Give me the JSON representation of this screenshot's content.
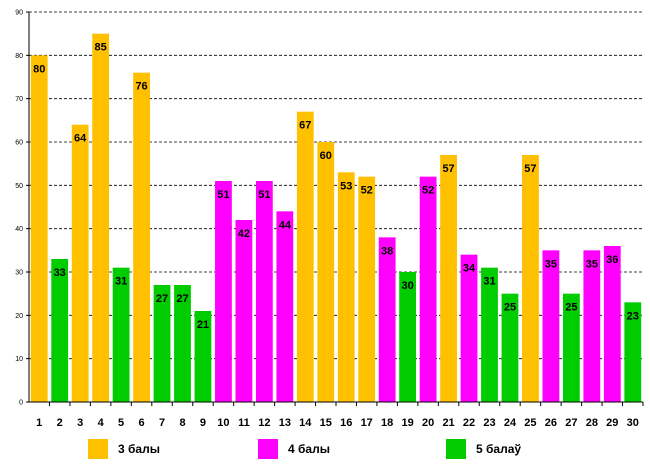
{
  "chart_data": {
    "type": "bar",
    "title": "",
    "xlabel": "",
    "ylabel": "",
    "ylim": [
      0,
      90
    ],
    "yticks": [
      0,
      10,
      20,
      30,
      40,
      50,
      60,
      70,
      80,
      90
    ],
    "grid": true,
    "categories": [
      "1",
      "2",
      "3",
      "4",
      "5",
      "6",
      "7",
      "8",
      "9",
      "10",
      "11",
      "12",
      "13",
      "14",
      "15",
      "16",
      "17",
      "18",
      "19",
      "20",
      "21",
      "22",
      "23",
      "24",
      "25",
      "26",
      "27",
      "28",
      "29",
      "30"
    ],
    "values": [
      80,
      33,
      64,
      85,
      31,
      76,
      27,
      27,
      21,
      51,
      42,
      51,
      44,
      67,
      60,
      53,
      52,
      38,
      30,
      52,
      57,
      34,
      31,
      25,
      57,
      35,
      25,
      35,
      36,
      23
    ],
    "groups": [
      "g3",
      "g5",
      "g3",
      "g3",
      "g5",
      "g3",
      "g5",
      "g5",
      "g5",
      "g4",
      "g4",
      "g4",
      "g4",
      "g3",
      "g3",
      "g3",
      "g3",
      "g4",
      "g5",
      "g4",
      "g3",
      "g4",
      "g5",
      "g5",
      "g3",
      "g4",
      "g5",
      "g4",
      "g4",
      "g5"
    ],
    "legend": [
      {
        "key": "g3",
        "label": "3 балы",
        "color": "#FFC000"
      },
      {
        "key": "g4",
        "label": "4 балы",
        "color": "#FF00FF"
      },
      {
        "key": "g5",
        "label": "5 балаў",
        "color": "#00CC00"
      }
    ],
    "legend_position": "bottom"
  }
}
